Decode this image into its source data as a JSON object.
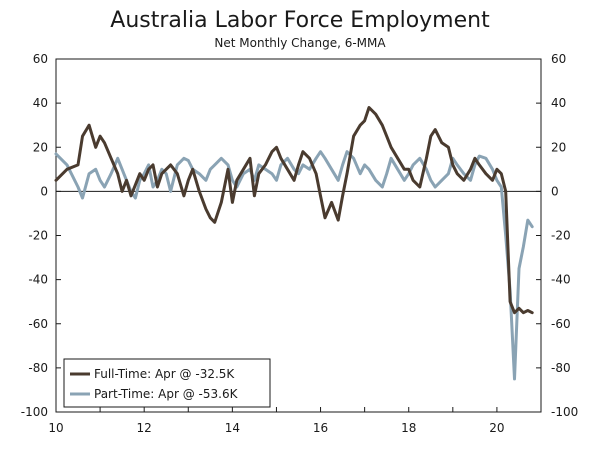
{
  "chart_data": {
    "type": "line",
    "title": "Australia Labor Force Employment",
    "subtitle": "Net Monthly Change, 6-MMA",
    "xlabel": "",
    "ylabel": "",
    "xlim": [
      2010,
      2021
    ],
    "ylim": [
      -100,
      60
    ],
    "x_ticks": [
      "10",
      "12",
      "14",
      "16",
      "18",
      "20"
    ],
    "y_ticks": [
      "60",
      "40",
      "20",
      "0",
      "-20",
      "-40",
      "-60",
      "-80",
      "-100"
    ],
    "y_ticks_right": [
      "60",
      "40",
      "20",
      "0",
      "-20",
      "-40",
      "-60",
      "-80",
      "-100"
    ],
    "grid": false,
    "zero_line": true,
    "legend_position": "bottom-left",
    "colors": {
      "full_time": "#4a3b2f",
      "part_time": "#8aa3b4",
      "axis": "#1a1a1a"
    },
    "series": [
      {
        "name": "Full-Time: Apr @ -32.5K",
        "x": [
          2010.0,
          2010.25,
          2010.5,
          2010.6,
          2010.75,
          2010.9,
          2011.0,
          2011.1,
          2011.25,
          2011.4,
          2011.5,
          2011.6,
          2011.7,
          2011.8,
          2011.9,
          2012.0,
          2012.1,
          2012.2,
          2012.3,
          2012.4,
          2012.5,
          2012.6,
          2012.75,
          2012.9,
          2013.0,
          2013.1,
          2013.25,
          2013.4,
          2013.5,
          2013.6,
          2013.75,
          2013.9,
          2014.0,
          2014.1,
          2014.25,
          2014.4,
          2014.5,
          2014.6,
          2014.75,
          2014.9,
          2015.0,
          2015.1,
          2015.25,
          2015.4,
          2015.5,
          2015.6,
          2015.75,
          2015.9,
          2016.0,
          2016.1,
          2016.25,
          2016.4,
          2016.5,
          2016.6,
          2016.75,
          2016.9,
          2017.0,
          2017.1,
          2017.25,
          2017.4,
          2017.5,
          2017.6,
          2017.75,
          2017.9,
          2018.0,
          2018.1,
          2018.25,
          2018.4,
          2018.5,
          2018.6,
          2018.75,
          2018.9,
          2019.0,
          2019.1,
          2019.25,
          2019.4,
          2019.5,
          2019.6,
          2019.75,
          2019.9,
          2020.0,
          2020.1,
          2020.2,
          2020.3,
          2020.4,
          2020.5,
          2020.6,
          2020.7,
          2020.8
        ],
        "values": [
          5,
          10,
          12,
          25,
          30,
          20,
          25,
          22,
          15,
          8,
          0,
          5,
          -2,
          3,
          8,
          5,
          10,
          12,
          2,
          8,
          10,
          12,
          8,
          -2,
          5,
          10,
          0,
          -8,
          -12,
          -14,
          -5,
          10,
          -5,
          5,
          10,
          15,
          -2,
          8,
          12,
          18,
          20,
          15,
          10,
          5,
          12,
          18,
          15,
          8,
          -2,
          -12,
          -5,
          -13,
          -2,
          8,
          25,
          30,
          32,
          38,
          35,
          30,
          25,
          20,
          15,
          10,
          10,
          5,
          2,
          15,
          25,
          28,
          22,
          20,
          12,
          8,
          5,
          10,
          15,
          12,
          8,
          5,
          10,
          8,
          0,
          -50,
          -55,
          -53,
          -55,
          -54,
          -55
        ]
      },
      {
        "name": "Part-Time: Apr @ -53.6K",
        "x": [
          2010.0,
          2010.25,
          2010.5,
          2010.6,
          2010.75,
          2010.9,
          2011.0,
          2011.1,
          2011.25,
          2011.4,
          2011.5,
          2011.6,
          2011.7,
          2011.8,
          2011.9,
          2012.0,
          2012.1,
          2012.2,
          2012.3,
          2012.4,
          2012.5,
          2012.6,
          2012.75,
          2012.9,
          2013.0,
          2013.1,
          2013.25,
          2013.4,
          2013.5,
          2013.6,
          2013.75,
          2013.9,
          2014.0,
          2014.1,
          2014.25,
          2014.4,
          2014.5,
          2014.6,
          2014.75,
          2014.9,
          2015.0,
          2015.1,
          2015.25,
          2015.4,
          2015.5,
          2015.6,
          2015.75,
          2015.9,
          2016.0,
          2016.1,
          2016.25,
          2016.4,
          2016.5,
          2016.6,
          2016.75,
          2016.9,
          2017.0,
          2017.1,
          2017.25,
          2017.4,
          2017.5,
          2017.6,
          2017.75,
          2017.9,
          2018.0,
          2018.1,
          2018.25,
          2018.4,
          2018.5,
          2018.6,
          2018.75,
          2018.9,
          2019.0,
          2019.1,
          2019.25,
          2019.4,
          2019.5,
          2019.6,
          2019.75,
          2019.9,
          2020.0,
          2020.1,
          2020.2,
          2020.3,
          2020.4,
          2020.5,
          2020.6,
          2020.7,
          2020.8
        ],
        "values": [
          17,
          12,
          2,
          -3,
          8,
          10,
          5,
          2,
          8,
          15,
          10,
          5,
          0,
          -3,
          5,
          8,
          12,
          2,
          5,
          10,
          8,
          0,
          12,
          15,
          14,
          10,
          8,
          5,
          10,
          12,
          15,
          12,
          5,
          2,
          8,
          10,
          5,
          12,
          10,
          8,
          5,
          12,
          15,
          10,
          8,
          12,
          10,
          15,
          18,
          15,
          10,
          5,
          12,
          18,
          15,
          8,
          12,
          10,
          5,
          2,
          8,
          15,
          10,
          5,
          8,
          12,
          15,
          10,
          5,
          2,
          5,
          8,
          15,
          12,
          8,
          5,
          12,
          16,
          15,
          10,
          5,
          2,
          -20,
          -45,
          -85,
          -35,
          -25,
          -13,
          -16
        ]
      }
    ],
    "legend": [
      {
        "label": "Full-Time: Apr @ -32.5K",
        "color": "#4a3b2f"
      },
      {
        "label": "Part-Time: Apr @ -53.6K",
        "color": "#8aa3b4"
      }
    ]
  }
}
